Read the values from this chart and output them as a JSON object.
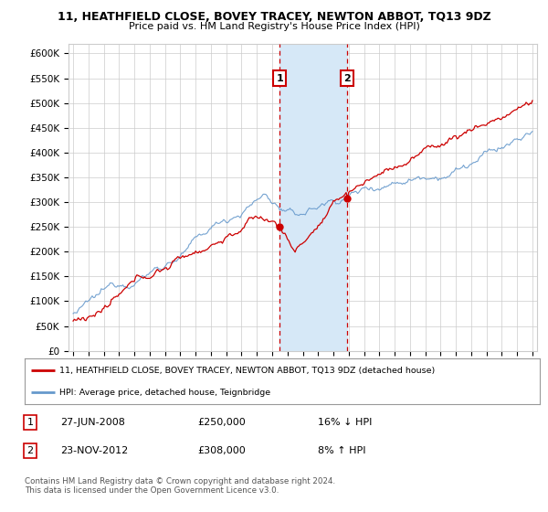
{
  "title": "11, HEATHFIELD CLOSE, BOVEY TRACEY, NEWTON ABBOT, TQ13 9DZ",
  "subtitle": "Price paid vs. HM Land Registry's House Price Index (HPI)",
  "ylim": [
    0,
    620000
  ],
  "yticks": [
    0,
    50000,
    100000,
    150000,
    200000,
    250000,
    300000,
    350000,
    400000,
    450000,
    500000,
    550000,
    600000
  ],
  "ytick_labels": [
    "£0",
    "£50K",
    "£100K",
    "£150K",
    "£200K",
    "£250K",
    "£300K",
    "£350K",
    "£400K",
    "£450K",
    "£500K",
    "£550K",
    "£600K"
  ],
  "sale1_date": 2008.49,
  "sale1_price": 250000,
  "sale2_date": 2012.9,
  "sale2_price": 308000,
  "shaded_region": [
    2008.49,
    2012.9
  ],
  "legend_line1": "11, HEATHFIELD CLOSE, BOVEY TRACEY, NEWTON ABBOT, TQ13 9DZ (detached house)",
  "legend_line2": "HPI: Average price, detached house, Teignbridge",
  "table_row1": [
    "1",
    "27-JUN-2008",
    "£250,000",
    "16% ↓ HPI"
  ],
  "table_row2": [
    "2",
    "23-NOV-2012",
    "£308,000",
    "8% ↑ HPI"
  ],
  "footer": "Contains HM Land Registry data © Crown copyright and database right 2024.\nThis data is licensed under the Open Government Licence v3.0.",
  "line_color_red": "#cc0000",
  "line_color_blue": "#6699cc",
  "shade_color": "#d6e8f7",
  "vline_color": "#cc0000",
  "background_color": "#ffffff",
  "grid_color": "#cccccc"
}
